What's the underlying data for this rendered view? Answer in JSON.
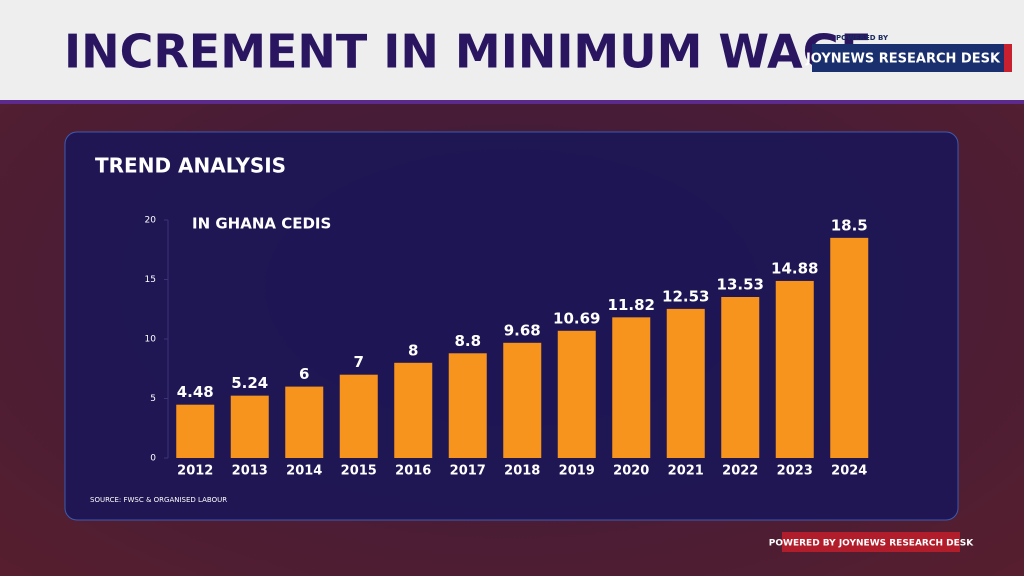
{
  "header": {
    "title": "INCREMENT IN MINIMUM WAGE",
    "badge_small": "POWERED BY",
    "badge": "JOYNEWS RESEARCH DESK"
  },
  "footer": "POWERED BY JOYNEWS RESEARCH DESK",
  "chart_data": {
    "type": "bar",
    "title": "TREND ANALYSIS",
    "subtitle": "IN GHANA CEDIS",
    "source": "SOURCE: FWSC & ORGANISED LABOUR",
    "categories": [
      "2012",
      "2013",
      "2014",
      "2015",
      "2016",
      "2017",
      "2018",
      "2019",
      "2020",
      "2021",
      "2022",
      "2023",
      "2024"
    ],
    "values": [
      4.48,
      5.24,
      6,
      7,
      8,
      8.8,
      9.68,
      10.69,
      11.82,
      12.53,
      13.53,
      14.88,
      18.5
    ],
    "color": "#f7941d",
    "ylim": [
      0,
      20
    ],
    "yticks": [
      0,
      5,
      10,
      15,
      20
    ]
  }
}
